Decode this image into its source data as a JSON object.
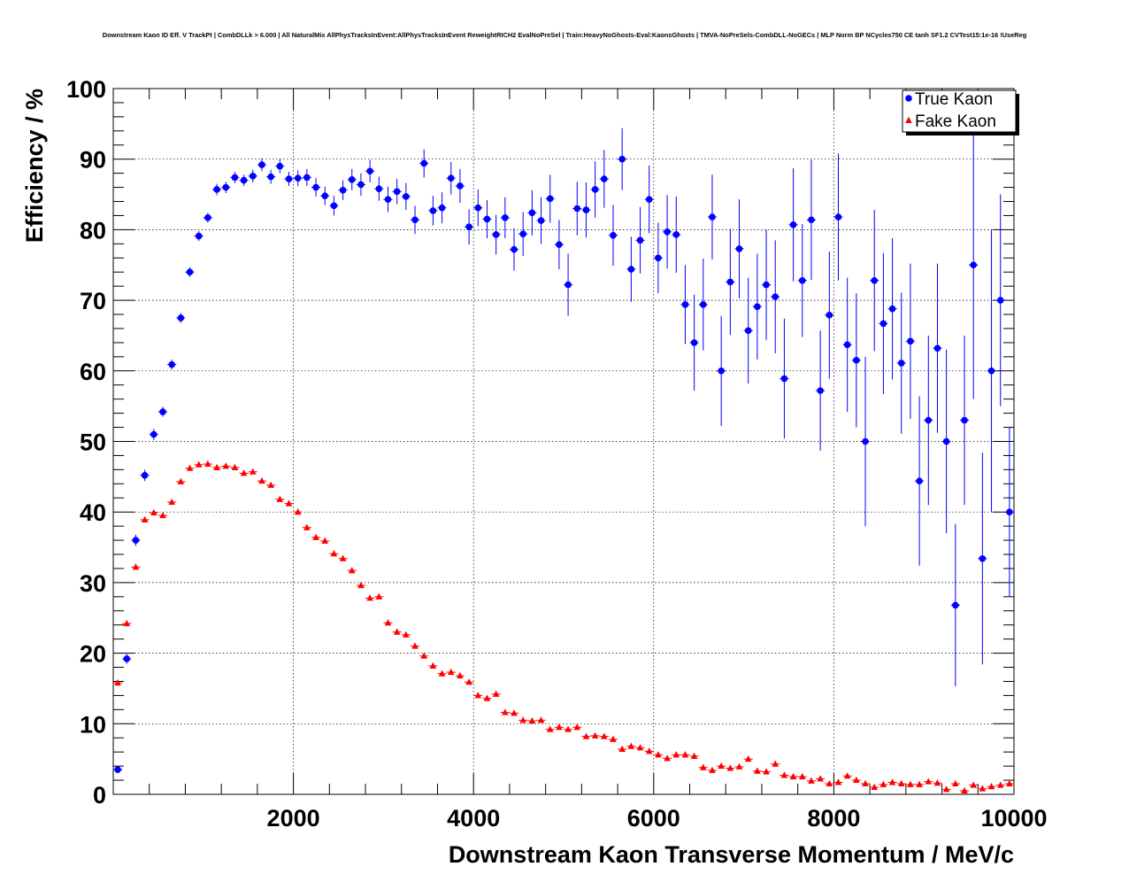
{
  "chart_data": {
    "type": "scatter",
    "title": "Downstream Kaon ID Eff. V TrackPt | CombDLLk > 6.000 | All NaturalMix AllPhysTracksInEvent:AllPhysTracksInEvent ReweightRICH2 EvalNoPreSel | Train:HeavyNoGhosts-Eval:KaonsGhosts | TMVA-NoPreSels-CombDLL-NoGECs | MLP Norm BP NCycles750 CE tanh SF1.2 CVTest15:1e-16 !UseReg",
    "xlabel": "Downstream Kaon Transverse Momentum / MeV/c",
    "ylabel": "Efficiency / %",
    "xlim": [
      0,
      10000
    ],
    "ylim": [
      0,
      100
    ],
    "x_ticks": [
      2000,
      4000,
      6000,
      8000,
      10000
    ],
    "y_ticks": [
      0,
      10,
      20,
      30,
      40,
      50,
      60,
      70,
      80,
      90,
      100
    ],
    "grid": true,
    "legend_position": "top-right",
    "series": [
      {
        "name": "True Kaon",
        "marker": "circle",
        "color": "#0000ff",
        "x": [
          50,
          150,
          250,
          350,
          450,
          550,
          650,
          750,
          850,
          950,
          1050,
          1150,
          1250,
          1350,
          1450,
          1550,
          1650,
          1750,
          1850,
          1950,
          2050,
          2150,
          2250,
          2350,
          2450,
          2550,
          2650,
          2750,
          2850,
          2950,
          3050,
          3150,
          3250,
          3350,
          3450,
          3550,
          3650,
          3750,
          3850,
          3950,
          4050,
          4150,
          4250,
          4350,
          4450,
          4550,
          4650,
          4750,
          4850,
          4950,
          5050,
          5150,
          5250,
          5350,
          5450,
          5550,
          5650,
          5750,
          5850,
          5950,
          6050,
          6150,
          6250,
          6350,
          6450,
          6550,
          6650,
          6750,
          6850,
          6950,
          7050,
          7150,
          7250,
          7350,
          7450,
          7550,
          7650,
          7750,
          7850,
          7950,
          8050,
          8150,
          8250,
          8350,
          8450,
          8550,
          8650,
          8750,
          8850,
          8950,
          9050,
          9150,
          9250,
          9350,
          9450,
          9550,
          9650,
          9750,
          9850,
          9950
        ],
        "y": [
          3.5,
          19.2,
          36,
          45.2,
          51,
          54.2,
          60.9,
          67.5,
          74,
          79.1,
          81.7,
          85.7,
          86,
          87.4,
          87,
          87.6,
          89.2,
          87.5,
          89,
          87.2,
          87.3,
          87.4,
          86,
          84.8,
          83.4,
          85.6,
          87.1,
          86.4,
          88.3,
          85.8,
          84.3,
          85.4,
          84.7,
          81.4,
          89.4,
          82.7,
          83.1,
          87.3,
          86.2,
          80.4,
          83.1,
          81.5,
          79.3,
          81.7,
          77.2,
          79.4,
          82.4,
          81.3,
          84.4,
          77.9,
          72.2,
          83,
          82.8,
          85.7,
          87.2,
          79.2,
          90,
          74.4,
          78.5,
          84.3,
          76,
          79.7,
          79.3,
          69.4,
          64,
          69.4,
          81.8,
          60,
          72.6,
          77.3,
          65.7,
          69.1,
          72.2,
          70.5,
          58.9,
          80.7,
          72.8,
          81.4,
          57.2,
          67.9,
          81.8,
          63.7,
          61.5,
          50,
          72.8,
          66.7,
          68.8,
          61.1,
          64.2,
          44.4,
          53,
          63.2,
          50,
          26.8,
          53,
          75,
          33.4,
          60,
          70,
          40
        ],
        "yerr": [
          0.5,
          0.7,
          0.8,
          0.8,
          0.8,
          0.7,
          0.7,
          0.7,
          0.7,
          0.7,
          0.7,
          0.8,
          0.8,
          0.8,
          0.8,
          0.9,
          0.9,
          1,
          1,
          1,
          1.1,
          1.2,
          1.3,
          1.3,
          1.4,
          1.4,
          1.5,
          1.6,
          1.6,
          1.7,
          1.8,
          1.8,
          1.9,
          2,
          2,
          2.1,
          2.2,
          2.3,
          2.4,
          2.5,
          2.6,
          2.7,
          2.8,
          2.9,
          3,
          3.1,
          3.2,
          3.3,
          3.4,
          3.5,
          4.4,
          3.8,
          3.9,
          4,
          4.1,
          4.3,
          4.4,
          4.6,
          4.7,
          4.8,
          5,
          5.2,
          5.4,
          5.6,
          6.8,
          6.5,
          6,
          7.8,
          7.5,
          7,
          7.5,
          7.5,
          7.8,
          8,
          8.5,
          8,
          8,
          8.5,
          8.5,
          9,
          9,
          9.5,
          9.5,
          12,
          10,
          10,
          10,
          10,
          11,
          12,
          12,
          12,
          13,
          11.5,
          12,
          19,
          15,
          20,
          15,
          12
        ]
      },
      {
        "name": "Fake Kaon",
        "marker": "triangle",
        "color": "#ff0000",
        "x": [
          50,
          150,
          250,
          350,
          450,
          550,
          650,
          750,
          850,
          950,
          1050,
          1150,
          1250,
          1350,
          1450,
          1550,
          1650,
          1750,
          1850,
          1950,
          2050,
          2150,
          2250,
          2350,
          2450,
          2550,
          2650,
          2750,
          2850,
          2950,
          3050,
          3150,
          3250,
          3350,
          3450,
          3550,
          3650,
          3750,
          3850,
          3950,
          4050,
          4150,
          4250,
          4350,
          4450,
          4550,
          4650,
          4750,
          4850,
          4950,
          5050,
          5150,
          5250,
          5350,
          5450,
          5550,
          5650,
          5750,
          5850,
          5950,
          6050,
          6150,
          6250,
          6350,
          6450,
          6550,
          6650,
          6750,
          6850,
          6950,
          7050,
          7150,
          7250,
          7350,
          7450,
          7550,
          7650,
          7750,
          7850,
          7950,
          8050,
          8150,
          8250,
          8350,
          8450,
          8550,
          8650,
          8750,
          8850,
          8950,
          9050,
          9150,
          9250,
          9350,
          9450,
          9550,
          9650,
          9750,
          9850,
          9950
        ],
        "y": [
          15.8,
          24.2,
          32.2,
          38.9,
          39.9,
          39.5,
          41.4,
          44.3,
          46.2,
          46.7,
          46.8,
          46.3,
          46.5,
          46.3,
          45.5,
          45.7,
          44.4,
          43.8,
          41.8,
          41.2,
          40,
          37.8,
          36.4,
          35.9,
          34.1,
          33.4,
          31.7,
          29.6,
          27.8,
          28,
          24.3,
          23,
          22.6,
          21,
          19.6,
          18.2,
          17.1,
          17.3,
          16.8,
          15.9,
          14,
          13.6,
          14.2,
          11.6,
          11.5,
          10.5,
          10.4,
          10.5,
          9.2,
          9.5,
          9.2,
          9.5,
          8.2,
          8.3,
          8.2,
          7.8,
          6.4,
          6.8,
          6.6,
          6.1,
          5.6,
          5.1,
          5.6,
          5.6,
          5.4,
          3.8,
          3.4,
          4,
          3.7,
          3.9,
          5,
          3.3,
          3.2,
          4.3,
          2.7,
          2.5,
          2.5,
          1.9,
          2.2,
          1.5,
          1.7,
          2.6,
          2,
          1.5,
          1,
          1.4,
          1.7,
          1.5,
          1.4,
          1.4,
          1.8,
          1.6,
          0.7,
          1.5,
          0.5,
          1.3,
          0.8,
          1.1,
          1.3,
          1.5
        ],
        "yerr": [
          0.2,
          0.2,
          0.2,
          0.2,
          0.2,
          0.2,
          0.2,
          0.2,
          0.2,
          0.2,
          0.2,
          0.2,
          0.2,
          0.2,
          0.2,
          0.2,
          0.2,
          0.2,
          0.2,
          0.2,
          0.2,
          0.2,
          0.2,
          0.2,
          0.2,
          0.2,
          0.2,
          0.2,
          0.2,
          0.2,
          0.2,
          0.2,
          0.2,
          0.2,
          0.2,
          0.2,
          0.2,
          0.2,
          0.2,
          0.2,
          0.2,
          0.2,
          0.2,
          0.2,
          0.2,
          0.2,
          0.2,
          0.2,
          0.2,
          0.2,
          0.2,
          0.2,
          0.2,
          0.2,
          0.2,
          0.2,
          0.2,
          0.2,
          0.2,
          0.2,
          0.2,
          0.2,
          0.2,
          0.2,
          0.2,
          0.2,
          0.2,
          0.2,
          0.2,
          0.2,
          0.2,
          0.2,
          0.2,
          0.2,
          0.2,
          0.2,
          0.2,
          0.2,
          0.2,
          0.2,
          0.2,
          0.2,
          0.2,
          0.2,
          0.2,
          0.2,
          0.2,
          0.2,
          0.2,
          0.2,
          0.2,
          0.2,
          0.2,
          0.2,
          0.2,
          0.2,
          0.2,
          0.2,
          0.2,
          0.2
        ]
      }
    ]
  }
}
